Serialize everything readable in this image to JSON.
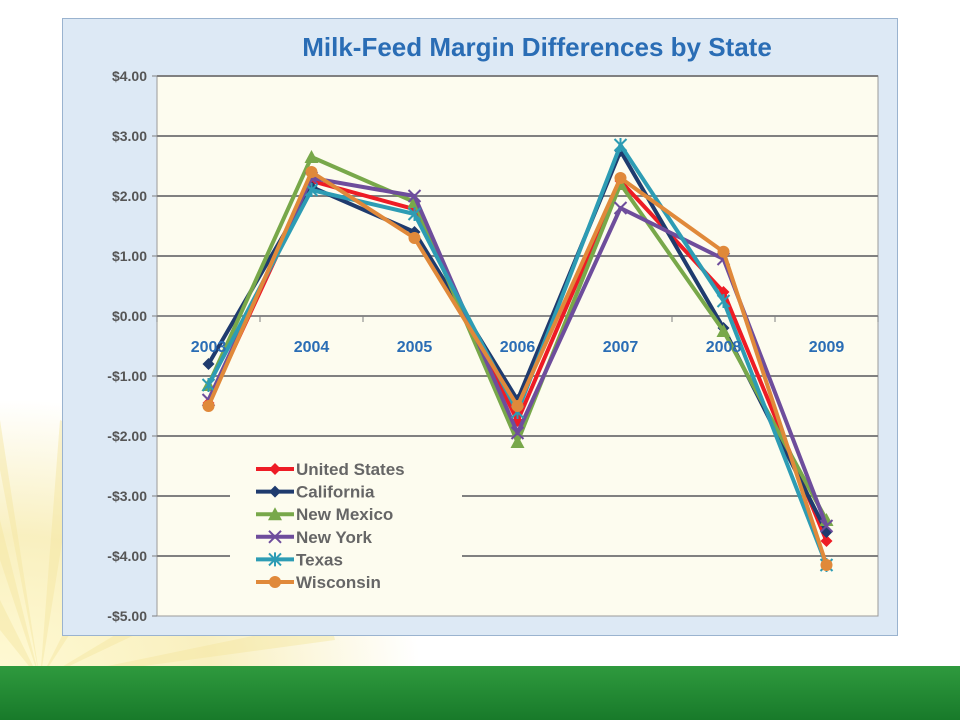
{
  "chart_data": {
    "type": "line",
    "title": "Milk-Feed Margin Differences by State",
    "categories": [
      "2003",
      "2004",
      "2005",
      "2006",
      "2007",
      "2008",
      "2009"
    ],
    "ylim": [
      -5,
      4
    ],
    "yticks": [
      4,
      3,
      2,
      1,
      0,
      -1,
      -2,
      -3,
      -4,
      -5
    ],
    "ytick_labels": [
      "$4.00",
      "$3.00",
      "$2.00",
      "$1.00",
      "$0.00",
      "-$1.00",
      "-$2.00",
      "-$3.00",
      "-$4.00",
      "-$5.00"
    ],
    "grid": true,
    "legend": "bottom-left",
    "series": [
      {
        "name": "United States",
        "color": "#ee1c25",
        "marker": "diamond",
        "values": [
          -1.45,
          2.25,
          1.78,
          -1.75,
          2.25,
          0.4,
          -3.75
        ]
      },
      {
        "name": "California",
        "color": "#1f3b6e",
        "marker": "diamond",
        "values": [
          -0.8,
          2.15,
          1.4,
          -1.4,
          2.75,
          -0.2,
          -3.6
        ]
      },
      {
        "name": "New Mexico",
        "color": "#78a84a",
        "marker": "triangle",
        "values": [
          -1.15,
          2.65,
          1.9,
          -2.1,
          2.2,
          -0.25,
          -3.4
        ]
      },
      {
        "name": "New York",
        "color": "#6e4d9c",
        "marker": "x",
        "values": [
          -1.4,
          2.3,
          2.0,
          -1.95,
          1.8,
          0.95,
          -3.5
        ]
      },
      {
        "name": "Texas",
        "color": "#2d9cb4",
        "marker": "star",
        "values": [
          -1.15,
          2.1,
          1.7,
          -1.6,
          2.85,
          0.25,
          -4.15
        ]
      },
      {
        "name": "Wisconsin",
        "color": "#e0893a",
        "marker": "circle",
        "values": [
          -1.5,
          2.4,
          1.3,
          -1.5,
          2.3,
          1.07,
          -4.15
        ]
      }
    ]
  }
}
